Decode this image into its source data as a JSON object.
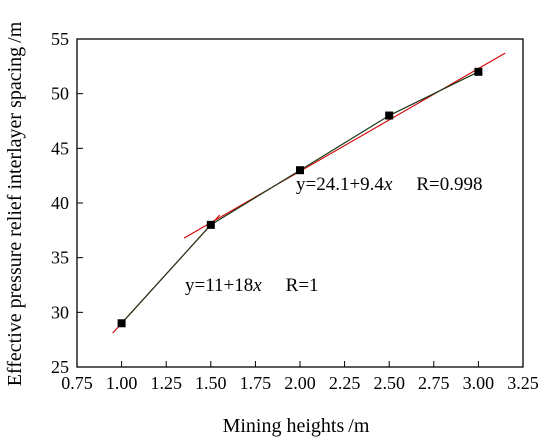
{
  "chart_data": {
    "type": "scatter",
    "xlabel": "Mining heights /m",
    "ylabel": "Effective pressure relief interlayer spacing /m",
    "xlim": [
      0.75,
      3.25
    ],
    "ylim": [
      25,
      55
    ],
    "x_ticks": [
      "0.75",
      "1.00",
      "1.25",
      "1.50",
      "1.75",
      "2.00",
      "2.25",
      "2.50",
      "2.75",
      "3.00",
      "3.25"
    ],
    "y_ticks": [
      "25",
      "30",
      "35",
      "40",
      "45",
      "50",
      "55"
    ],
    "grid": false,
    "series": [
      {
        "x": [
          1.0,
          1.5,
          2.0,
          2.5,
          3.0
        ],
        "y": [
          29,
          38,
          43,
          48,
          52
        ],
        "marker": "square",
        "color": "#000000",
        "line_color": "#1a3a1a"
      }
    ],
    "fits": [
      {
        "intercept": 11,
        "slope": 18,
        "x_range": [
          0.95,
          1.55
        ],
        "color": "#d40000"
      },
      {
        "intercept": 24.1,
        "slope": 9.4,
        "x_range": [
          1.35,
          3.15
        ],
        "color": "#d40000"
      }
    ],
    "annotations": [
      {
        "id": "eq1",
        "prefix": "y=11+18",
        "var": "x",
        "suffix": "R=1"
      },
      {
        "id": "eq2",
        "prefix": "y=24.1+9.4",
        "var": "x",
        "suffix": "R=0.998"
      }
    ]
  }
}
